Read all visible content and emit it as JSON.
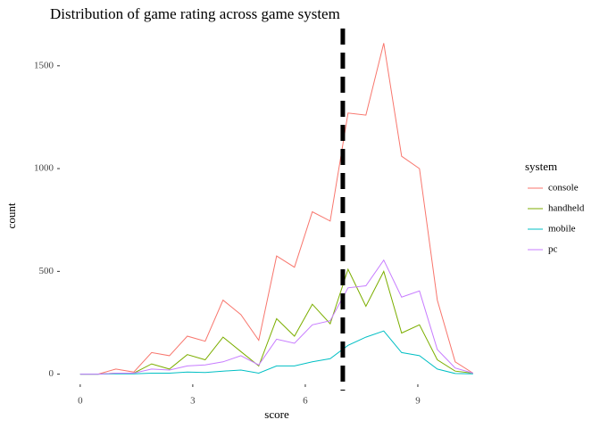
{
  "chart_data": {
    "type": "line",
    "title": "Distribution of game rating across game system",
    "x_label": "score",
    "y_label": "count",
    "x": [
      0,
      0.476,
      0.952,
      1.428,
      1.904,
      2.38,
      2.856,
      3.332,
      3.808,
      4.284,
      4.76,
      5.236,
      5.712,
      6.188,
      6.664,
      7.14,
      7.616,
      8.092,
      8.568,
      9.044,
      9.52,
      9.996,
      10.472
    ],
    "series": [
      {
        "name": "console",
        "color": "#f8766d",
        "values": [
          0,
          0,
          25,
          10,
          105,
          90,
          185,
          160,
          360,
          290,
          165,
          575,
          520,
          790,
          745,
          1270,
          1260,
          1610,
          1060,
          1000,
          360,
          60,
          5
        ]
      },
      {
        "name": "handheld",
        "color": "#7cae00",
        "values": [
          0,
          0,
          5,
          5,
          50,
          25,
          95,
          70,
          180,
          110,
          40,
          270,
          185,
          340,
          245,
          510,
          330,
          500,
          200,
          240,
          70,
          15,
          5
        ]
      },
      {
        "name": "mobile",
        "color": "#00bfc4",
        "values": [
          0,
          0,
          2,
          2,
          5,
          5,
          10,
          8,
          15,
          20,
          5,
          40,
          40,
          60,
          75,
          140,
          180,
          210,
          105,
          90,
          25,
          3,
          2
        ]
      },
      {
        "name": "pc",
        "color": "#c77cff",
        "values": [
          0,
          0,
          5,
          5,
          25,
          20,
          40,
          45,
          60,
          90,
          45,
          170,
          150,
          240,
          260,
          420,
          430,
          555,
          375,
          405,
          120,
          30,
          5
        ]
      }
    ],
    "legend_title": "system",
    "legend_position": "right",
    "vline": {
      "x": 7,
      "color": "#000000",
      "dashed": true
    },
    "xlim": [
      -0.52,
      11.0
    ],
    "xticks": [
      0,
      3,
      6,
      9
    ],
    "ylim": [
      -45,
      1690
    ],
    "yticks": [
      0,
      500,
      1000,
      1500
    ],
    "grid": false
  }
}
